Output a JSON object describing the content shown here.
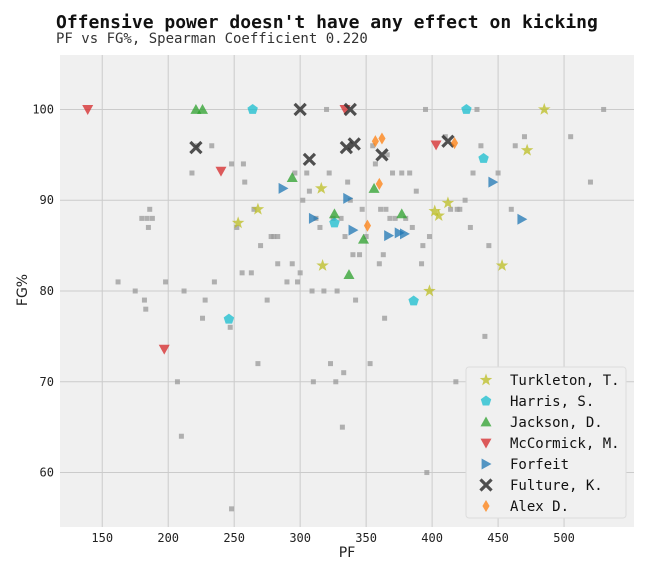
{
  "chart_data": {
    "type": "scatter",
    "title": "Offensive power doesn't have any effect on kicking",
    "subtitle": "PF vs FG%, Spearman Coefficient 0.220",
    "xlabel": "PF",
    "ylabel": "FG%",
    "xlim": [
      118,
      553
    ],
    "ylim": [
      54,
      106
    ],
    "xticks": [
      150,
      200,
      250,
      300,
      350,
      400,
      450,
      500
    ],
    "yticks": [
      60,
      70,
      80,
      90,
      100
    ],
    "grid": true,
    "legend_position": "bottom-right",
    "background": [
      [
        162,
        81
      ],
      [
        175,
        80
      ],
      [
        180,
        88
      ],
      [
        182,
        79
      ],
      [
        183,
        78
      ],
      [
        184,
        88
      ],
      [
        185,
        87
      ],
      [
        186,
        89
      ],
      [
        188,
        88
      ],
      [
        198,
        81
      ],
      [
        207,
        70
      ],
      [
        210,
        64
      ],
      [
        212,
        80
      ],
      [
        218,
        93
      ],
      [
        222,
        96
      ],
      [
        226,
        77
      ],
      [
        228,
        79
      ],
      [
        233,
        96
      ],
      [
        235,
        81
      ],
      [
        247,
        76
      ],
      [
        248,
        94
      ],
      [
        248,
        56
      ],
      [
        252,
        87
      ],
      [
        256,
        82
      ],
      [
        257,
        94
      ],
      [
        258,
        92
      ],
      [
        263,
        82
      ],
      [
        265,
        89
      ],
      [
        268,
        72
      ],
      [
        270,
        85
      ],
      [
        275,
        79
      ],
      [
        278,
        86
      ],
      [
        280,
        86
      ],
      [
        283,
        83
      ],
      [
        283,
        86
      ],
      [
        290,
        81
      ],
      [
        294,
        83
      ],
      [
        296,
        93
      ],
      [
        298,
        81
      ],
      [
        300,
        82
      ],
      [
        302,
        90
      ],
      [
        305,
        93
      ],
      [
        307,
        91
      ],
      [
        309,
        80
      ],
      [
        310,
        70
      ],
      [
        312,
        88
      ],
      [
        315,
        87
      ],
      [
        318,
        80
      ],
      [
        320,
        100
      ],
      [
        322,
        93
      ],
      [
        323,
        72
      ],
      [
        325,
        88
      ],
      [
        327,
        70
      ],
      [
        328,
        80
      ],
      [
        331,
        88
      ],
      [
        332,
        65
      ],
      [
        333,
        71
      ],
      [
        334,
        86
      ],
      [
        336,
        92
      ],
      [
        338,
        90
      ],
      [
        340,
        84
      ],
      [
        342,
        79
      ],
      [
        345,
        84
      ],
      [
        347,
        89
      ],
      [
        350,
        86
      ],
      [
        353,
        72
      ],
      [
        355,
        96
      ],
      [
        357,
        94
      ],
      [
        360,
        83
      ],
      [
        361,
        89
      ],
      [
        363,
        84
      ],
      [
        364,
        77
      ],
      [
        365,
        89
      ],
      [
        366,
        95
      ],
      [
        368,
        88
      ],
      [
        370,
        93
      ],
      [
        372,
        88
      ],
      [
        377,
        93
      ],
      [
        380,
        88
      ],
      [
        383,
        93
      ],
      [
        385,
        87
      ],
      [
        388,
        91
      ],
      [
        392,
        83
      ],
      [
        393,
        85
      ],
      [
        395,
        100
      ],
      [
        396,
        60
      ],
      [
        398,
        86
      ],
      [
        410,
        97
      ],
      [
        414,
        89
      ],
      [
        418,
        70
      ],
      [
        419,
        89
      ],
      [
        421,
        89
      ],
      [
        425,
        90
      ],
      [
        429,
        87
      ],
      [
        431,
        93
      ],
      [
        434,
        100
      ],
      [
        437,
        96
      ],
      [
        440,
        75
      ],
      [
        443,
        85
      ],
      [
        447,
        71
      ],
      [
        450,
        93
      ],
      [
        460,
        89
      ],
      [
        463,
        96
      ],
      [
        470,
        97
      ],
      [
        505,
        97
      ],
      [
        520,
        92
      ],
      [
        530,
        100
      ]
    ],
    "series": [
      {
        "name": "Turkleton, T.",
        "marker": "star",
        "color": "#bcbd22",
        "points": [
          [
            253,
            87.5
          ],
          [
            268,
            89
          ],
          [
            316,
            91.3
          ],
          [
            317,
            82.8
          ],
          [
            398,
            80
          ],
          [
            402,
            88.8
          ],
          [
            405,
            88.3
          ],
          [
            412,
            89.7
          ],
          [
            453,
            82.8
          ],
          [
            472,
            95.5
          ],
          [
            485,
            100
          ]
        ]
      },
      {
        "name": "Harris, S.",
        "marker": "pentagon",
        "color": "#17becf",
        "points": [
          [
            246,
            76.9
          ],
          [
            264,
            100
          ],
          [
            326,
            87.5
          ],
          [
            386,
            78.9
          ],
          [
            426,
            100
          ],
          [
            439,
            94.6
          ]
        ]
      },
      {
        "name": "Jackson, D.",
        "marker": "triangle-up",
        "color": "#2ca02c",
        "points": [
          [
            221,
            100
          ],
          [
            226,
            100
          ],
          [
            294,
            92.5
          ],
          [
            326,
            88.5
          ],
          [
            337,
            81.8
          ],
          [
            348,
            85.7
          ],
          [
            356,
            91.3
          ],
          [
            377,
            88.5
          ]
        ]
      },
      {
        "name": "McCormick, M.",
        "marker": "triangle-down",
        "color": "#d62728",
        "points": [
          [
            139,
            100
          ],
          [
            197,
            73.6
          ],
          [
            240,
            93.2
          ],
          [
            334,
            100
          ],
          [
            403,
            96.1
          ]
        ]
      },
      {
        "name": "Forfeit",
        "marker": "triangle-right",
        "color": "#1f77b4",
        "points": [
          [
            287,
            91.3
          ],
          [
            310,
            88
          ],
          [
            336,
            90.2
          ],
          [
            340,
            86.7
          ],
          [
            367,
            86.1
          ],
          [
            375,
            86.4
          ],
          [
            379,
            86.3
          ],
          [
            446,
            92
          ],
          [
            468,
            87.9
          ]
        ]
      },
      {
        "name": "Fulture, K.",
        "marker": "x",
        "color": "#333333",
        "points": [
          [
            221,
            95.8
          ],
          [
            300,
            100
          ],
          [
            307,
            94.5
          ],
          [
            335,
            95.8
          ],
          [
            338,
            100
          ],
          [
            341,
            96.2
          ],
          [
            362,
            95
          ],
          [
            412,
            96.5
          ]
        ]
      },
      {
        "name": "Alex D.",
        "marker": "diamond",
        "color": "#ff7f0e",
        "points": [
          [
            351,
            87.2
          ],
          [
            357,
            96.5
          ],
          [
            360,
            91.8
          ],
          [
            362,
            96.8
          ],
          [
            417,
            96.3
          ]
        ]
      }
    ]
  }
}
